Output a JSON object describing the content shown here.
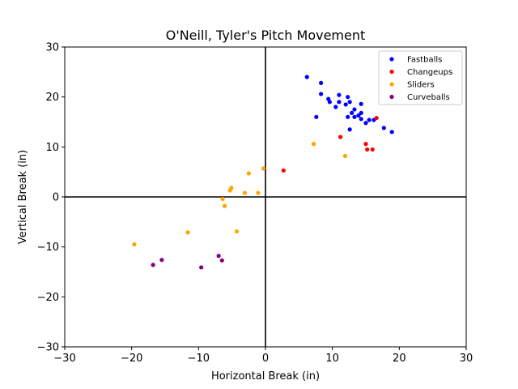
{
  "chart_data": {
    "type": "scatter",
    "title": "O'Neill, Tyler's Pitch Movement",
    "xlabel": "Horizontal Break (in)",
    "ylabel": "Vertical Break (in)",
    "xlim": [
      -30,
      30
    ],
    "ylim": [
      -30,
      30
    ],
    "xticks": [
      -30,
      -20,
      -10,
      0,
      10,
      20,
      30
    ],
    "yticks": [
      -30,
      -20,
      -10,
      0,
      10,
      20,
      30
    ],
    "tick_labels": [
      "−30",
      "−20",
      "−10",
      "0",
      "10",
      "20",
      "30"
    ],
    "grid": false,
    "reference_lines": [
      0,
      0
    ],
    "legend_position": "top-right",
    "series": [
      {
        "name": "Fastballs",
        "color": "#0000ff",
        "points": [
          [
            6.2,
            24.0
          ],
          [
            8.3,
            22.8
          ],
          [
            8.3,
            20.6
          ],
          [
            9.4,
            19.6
          ],
          [
            9.6,
            19.0
          ],
          [
            11.0,
            20.4
          ],
          [
            10.5,
            18.0
          ],
          [
            11.0,
            19.0
          ],
          [
            12.0,
            18.5
          ],
          [
            12.3,
            20.0
          ],
          [
            12.6,
            19.0
          ],
          [
            7.6,
            16.0
          ],
          [
            12.3,
            16.0
          ],
          [
            12.9,
            16.8
          ],
          [
            13.3,
            17.5
          ],
          [
            13.3,
            16.0
          ],
          [
            13.9,
            16.3
          ],
          [
            14.3,
            15.6
          ],
          [
            14.3,
            16.8
          ],
          [
            14.3,
            18.6
          ],
          [
            15.0,
            14.8
          ],
          [
            15.5,
            15.4
          ],
          [
            16.2,
            15.4
          ],
          [
            17.7,
            13.8
          ],
          [
            18.9,
            13.0
          ],
          [
            12.6,
            13.5
          ]
        ]
      },
      {
        "name": "Changeups",
        "color": "#ff0000",
        "points": [
          [
            11.2,
            12.0
          ],
          [
            15.0,
            10.6
          ],
          [
            15.2,
            9.5
          ],
          [
            16.0,
            9.5
          ],
          [
            16.6,
            15.8
          ],
          [
            2.7,
            5.3
          ]
        ]
      },
      {
        "name": "Sliders",
        "color": "#ffa500",
        "points": [
          [
            7.2,
            10.6
          ],
          [
            11.9,
            8.2
          ],
          [
            -0.3,
            5.7
          ],
          [
            -2.5,
            4.7
          ],
          [
            -5.1,
            1.8
          ],
          [
            -5.3,
            1.3
          ],
          [
            -3.1,
            0.8
          ],
          [
            -1.1,
            0.8
          ],
          [
            -6.4,
            -0.4
          ],
          [
            -6.1,
            -1.8
          ],
          [
            -4.3,
            -6.9
          ],
          [
            -11.6,
            -7.1
          ],
          [
            -19.6,
            -9.5
          ]
        ]
      },
      {
        "name": "Curveballs",
        "color": "#800080",
        "points": [
          [
            -15.5,
            -12.6
          ],
          [
            -16.8,
            -13.6
          ],
          [
            -7.0,
            -11.8
          ],
          [
            -6.5,
            -12.7
          ],
          [
            -9.6,
            -14.1
          ]
        ]
      }
    ]
  }
}
